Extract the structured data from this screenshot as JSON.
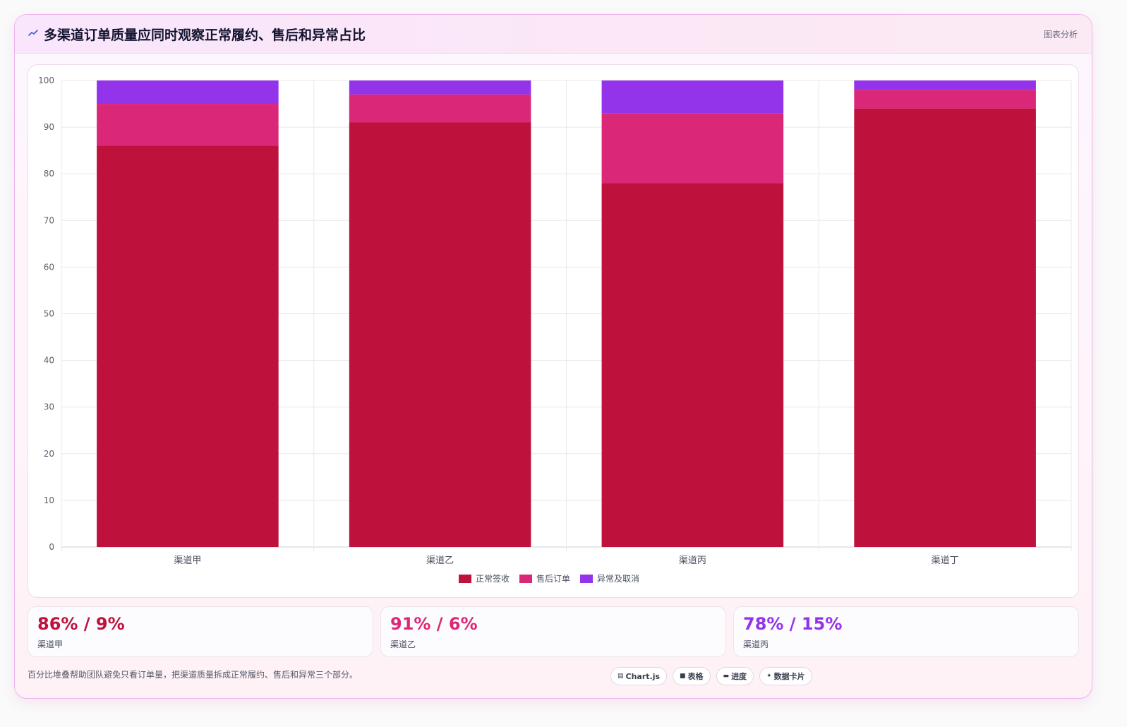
{
  "header": {
    "title": "多渠道订单质量应同时观察正常履约、售后和异常占比",
    "tag": "图表分析"
  },
  "colors": {
    "normal": "#be123c",
    "aftersale": "#db2777",
    "abnormal": "#9333ea"
  },
  "chart_data": {
    "type": "bar",
    "stacked": true,
    "categories": [
      "渠道甲",
      "渠道乙",
      "渠道丙",
      "渠道丁"
    ],
    "series": [
      {
        "name": "正常签收",
        "values": [
          86,
          91,
          78,
          94
        ]
      },
      {
        "name": "售后订单",
        "values": [
          9,
          6,
          15,
          4
        ]
      },
      {
        "name": "异常及取消",
        "values": [
          5,
          3,
          7,
          2
        ]
      }
    ],
    "ylim": [
      0,
      100
    ],
    "yticks": [
      0,
      10,
      20,
      30,
      40,
      50,
      60,
      70,
      80,
      90,
      100
    ],
    "grid": true,
    "legend": "bottom-center"
  },
  "stats": [
    {
      "value": "86% / 9%",
      "label": "渠道甲"
    },
    {
      "value": "91% / 6%",
      "label": "渠道乙"
    },
    {
      "value": "78% / 15%",
      "label": "渠道丙"
    }
  ],
  "footer": {
    "note": "百分比堆叠帮助团队避免只看订单量，把渠道质量拆成正常履约、售后和异常三个部分。",
    "chips": [
      {
        "icon": "chart-icon",
        "label": "Chart.js"
      },
      {
        "icon": "table-icon",
        "label": "表格"
      },
      {
        "icon": "progress-icon",
        "label": "进度"
      },
      {
        "icon": "sparkle-icon",
        "label": "数据卡片"
      }
    ]
  }
}
